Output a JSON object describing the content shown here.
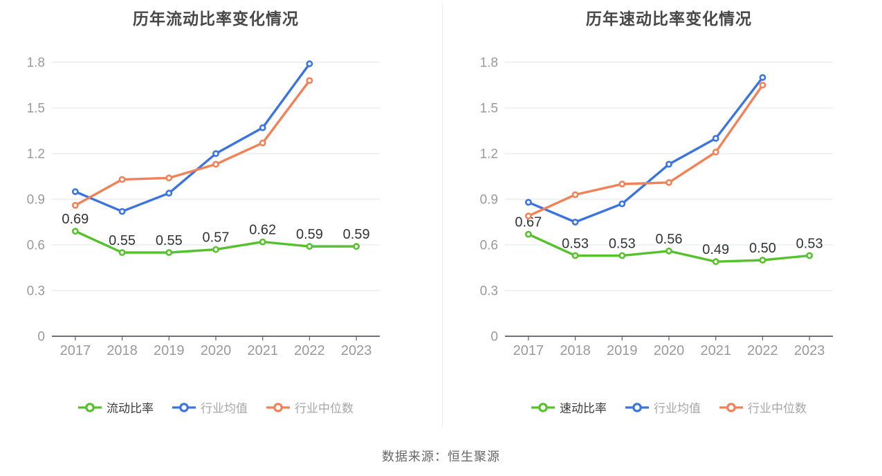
{
  "footer": "数据来源：恒生聚源",
  "colors": {
    "green": "#55c22b",
    "blue": "#3b74e0",
    "orange": "#f28158",
    "grid": "#e4e9f2",
    "axis": "#585c64",
    "tick_label": "#999999",
    "data_label": "#333333",
    "title": "#474747",
    "legend_active_text": "#3a3a3a",
    "legend_inactive_text": "#a6a6a6",
    "divider": "#ededed",
    "footer_text": "#666666",
    "marker_fill": "#ffffff"
  },
  "chart_data": [
    {
      "type": "line",
      "title": "历年流动比率变化情况",
      "categories": [
        "2017",
        "2018",
        "2019",
        "2020",
        "2021",
        "2022",
        "2023"
      ],
      "ytick_values": [
        0,
        0.3,
        0.6,
        0.9,
        1.2,
        1.5,
        1.8
      ],
      "ytick_labels": [
        "0",
        "0.3",
        "0.6",
        "0.9",
        "1.2",
        "1.5",
        "1.8"
      ],
      "ylim": [
        0,
        1.8
      ],
      "grid_on": true,
      "legend_position": "bottom",
      "series": [
        {
          "name": "流动比率",
          "color_key": "green",
          "show_labels": true,
          "values": [
            0.69,
            0.55,
            0.55,
            0.57,
            0.62,
            0.59,
            0.59
          ],
          "labels": [
            "0.69",
            "0.55",
            "0.55",
            "0.57",
            "0.62",
            "0.59",
            "0.59"
          ],
          "legend_text_color_key": "legend_active_text"
        },
        {
          "name": "行业均值",
          "color_key": "blue",
          "show_labels": false,
          "values": [
            0.95,
            0.82,
            0.94,
            1.2,
            1.37,
            1.79,
            null
          ],
          "legend_text_color_key": "legend_inactive_text"
        },
        {
          "name": "行业中位数",
          "color_key": "orange",
          "show_labels": false,
          "values": [
            0.86,
            1.03,
            1.04,
            1.13,
            1.27,
            1.68,
            null
          ],
          "legend_text_color_key": "legend_inactive_text"
        }
      ]
    },
    {
      "type": "line",
      "title": "历年速动比率变化情况",
      "categories": [
        "2017",
        "2018",
        "2019",
        "2020",
        "2021",
        "2022",
        "2023"
      ],
      "ytick_values": [
        0,
        0.3,
        0.6,
        0.9,
        1.2,
        1.5,
        1.8
      ],
      "ytick_labels": [
        "0",
        "0.3",
        "0.6",
        "0.9",
        "1.2",
        "1.5",
        "1.8"
      ],
      "ylim": [
        0,
        1.8
      ],
      "grid_on": true,
      "legend_position": "bottom",
      "series": [
        {
          "name": "速动比率",
          "color_key": "green",
          "show_labels": true,
          "values": [
            0.67,
            0.53,
            0.53,
            0.56,
            0.49,
            0.5,
            0.53
          ],
          "labels": [
            "0.67",
            "0.53",
            "0.53",
            "0.56",
            "0.49",
            "0.50",
            "0.53"
          ],
          "legend_text_color_key": "legend_active_text"
        },
        {
          "name": "行业均值",
          "color_key": "blue",
          "show_labels": false,
          "values": [
            0.88,
            0.75,
            0.87,
            1.13,
            1.3,
            1.7,
            null
          ],
          "legend_text_color_key": "legend_inactive_text"
        },
        {
          "name": "行业中位数",
          "color_key": "orange",
          "show_labels": false,
          "values": [
            0.79,
            0.93,
            1.0,
            1.01,
            1.21,
            1.65,
            null
          ],
          "legend_text_color_key": "legend_inactive_text"
        }
      ]
    }
  ]
}
